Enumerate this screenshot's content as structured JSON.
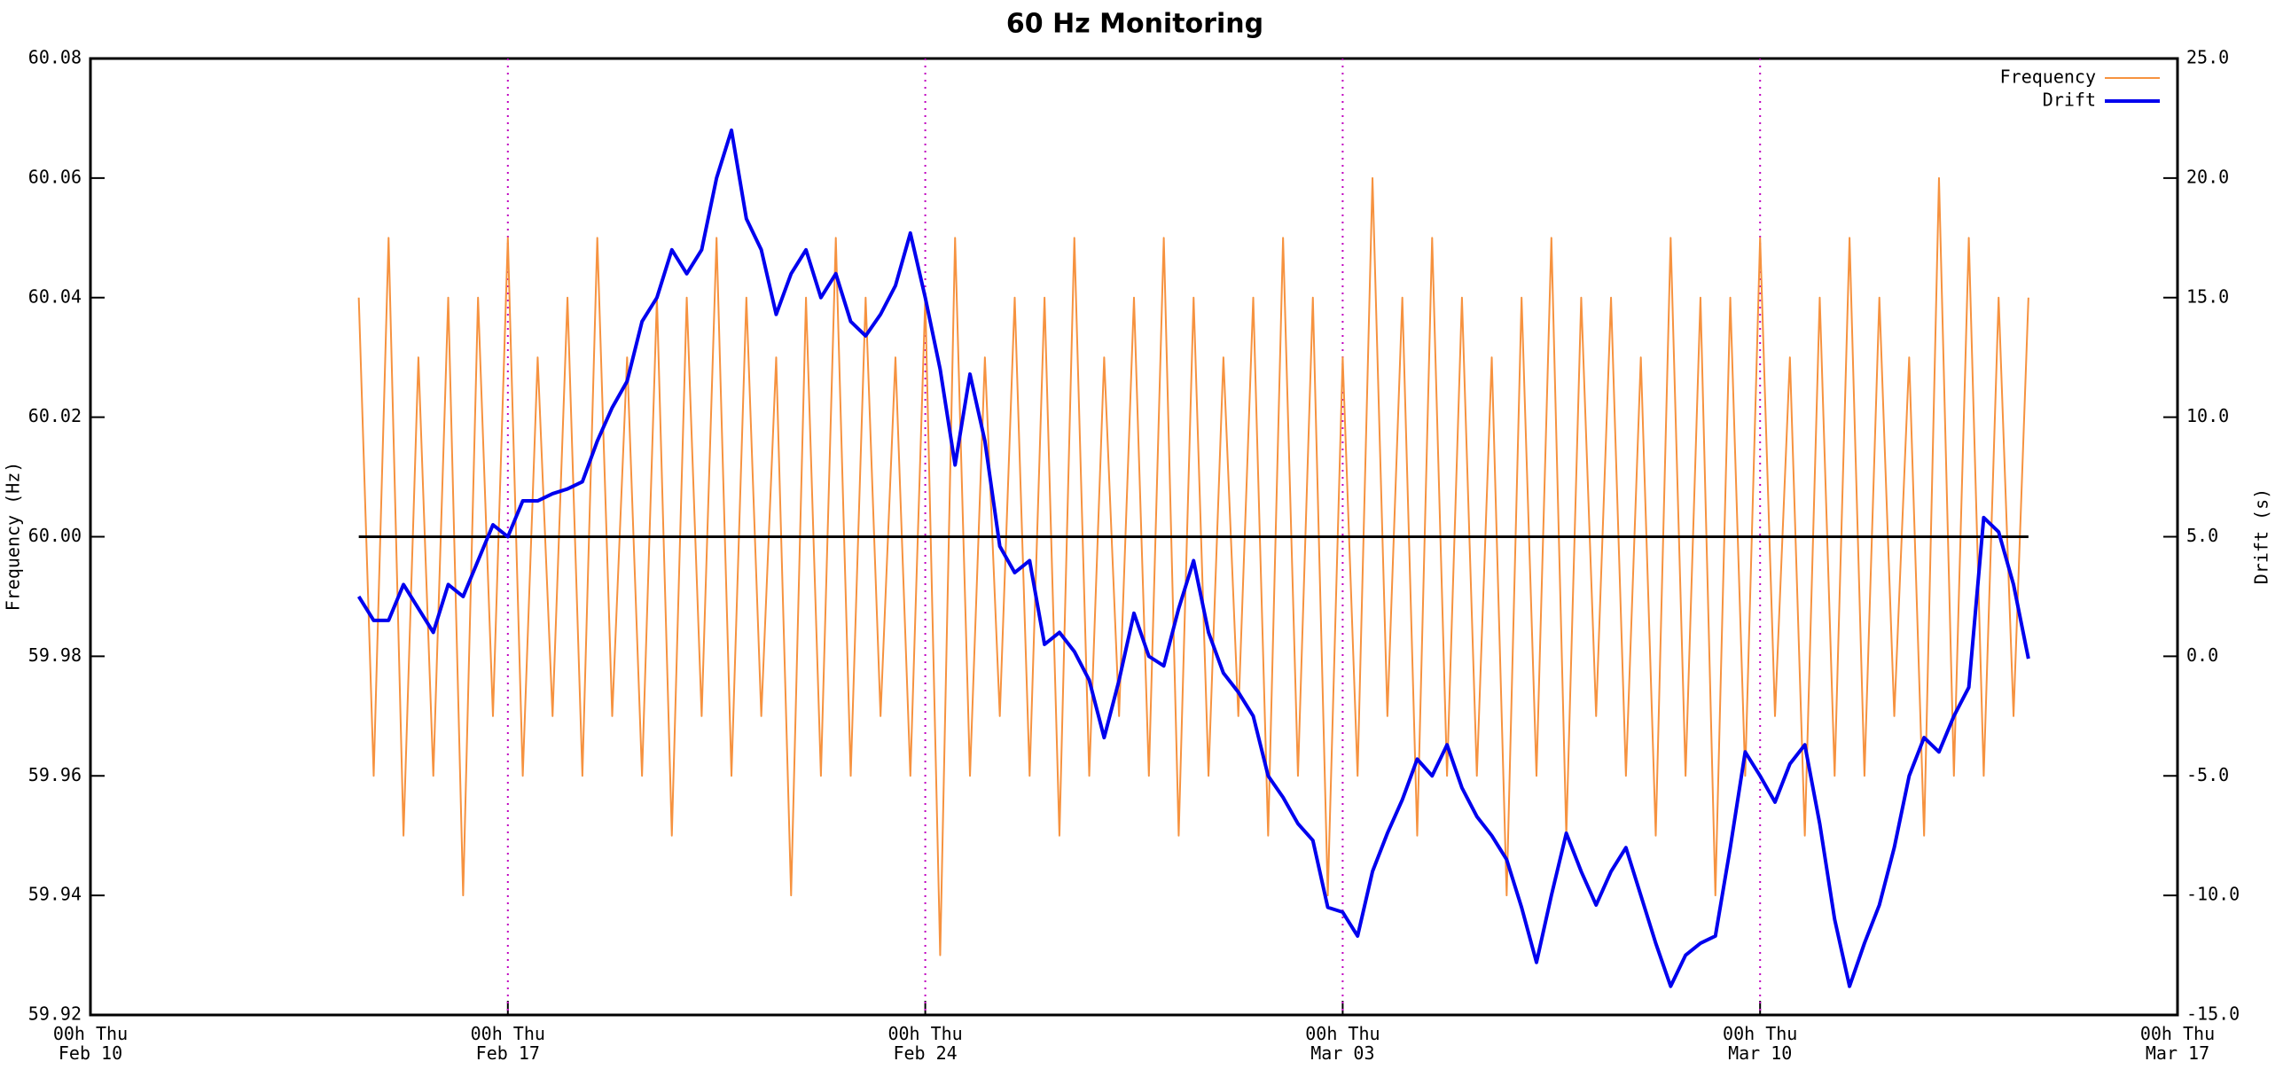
{
  "chart_data": {
    "type": "line",
    "title": "60 Hz Monitoring",
    "y_label": "Frequency (Hz)",
    "y2_label": "Drift (s)",
    "x": [
      4.5,
      4.75,
      5,
      5.25,
      5.5,
      5.75,
      6,
      6.25,
      6.5,
      6.75,
      7,
      7.25,
      7.5,
      7.75,
      8,
      8.25,
      8.5,
      8.75,
      9,
      9.25,
      9.5,
      9.75,
      10,
      10.25,
      10.5,
      10.75,
      11,
      11.25,
      11.5,
      11.75,
      12,
      12.25,
      12.5,
      12.75,
      13,
      13.25,
      13.5,
      13.75,
      14,
      14.25,
      14.5,
      14.75,
      15,
      15.25,
      15.5,
      15.75,
      16,
      16.25,
      16.5,
      16.75,
      17,
      17.25,
      17.5,
      17.75,
      18,
      18.25,
      18.5,
      18.75,
      19,
      19.25,
      19.5,
      19.75,
      20,
      20.25,
      20.5,
      20.75,
      21,
      21.25,
      21.5,
      21.75,
      22,
      22.25,
      22.5,
      22.75,
      23,
      23.25,
      23.5,
      23.75,
      24,
      24.25,
      24.5,
      24.75,
      25,
      25.25,
      25.5,
      25.75,
      26,
      26.25,
      26.5,
      26.75,
      27,
      27.25,
      27.5,
      27.75,
      28,
      28.25,
      28.5,
      28.75,
      29,
      29.25,
      29.5,
      29.75,
      30,
      30.25,
      30.5,
      30.75,
      31,
      31.25,
      31.5,
      31.75,
      32,
      32.25,
      32.5
    ],
    "series": [
      {
        "name": "Frequency",
        "color": "#f6923f",
        "axis": "y",
        "values": [
          60.04,
          59.96,
          60.05,
          59.95,
          60.03,
          59.96,
          60.04,
          59.94,
          60.04,
          59.97,
          60.05,
          59.96,
          60.03,
          59.97,
          60.04,
          59.96,
          60.05,
          59.97,
          60.03,
          59.96,
          60.04,
          59.95,
          60.04,
          59.97,
          60.05,
          59.96,
          60.04,
          59.97,
          60.03,
          59.94,
          60.04,
          59.96,
          60.05,
          59.96,
          60.04,
          59.97,
          60.03,
          59.96,
          60.04,
          59.93,
          60.05,
          59.96,
          60.03,
          59.97,
          60.04,
          59.96,
          60.04,
          59.95,
          60.05,
          59.96,
          60.03,
          59.97,
          60.04,
          59.96,
          60.05,
          59.95,
          60.04,
          59.96,
          60.03,
          59.97,
          60.04,
          59.95,
          60.05,
          59.96,
          60.04,
          59.94,
          60.03,
          59.96,
          60.06,
          59.97,
          60.04,
          59.95,
          60.05,
          59.96,
          60.04,
          59.96,
          60.03,
          59.94,
          60.04,
          59.96,
          60.05,
          59.95,
          60.04,
          59.97,
          60.04,
          59.96,
          60.03,
          59.95,
          60.05,
          59.96,
          60.04,
          59.94,
          60.04,
          59.96,
          60.05,
          59.97,
          60.03,
          59.95,
          60.04,
          59.96,
          60.05,
          59.96,
          60.04,
          59.97,
          60.03,
          59.95,
          60.06,
          59.96,
          60.05,
          59.96,
          60.04,
          59.97,
          60.04
        ]
      },
      {
        "name": "Drift",
        "color": "#0000ee",
        "axis": "y2",
        "values": [
          2.5,
          1.5,
          1.5,
          3,
          2,
          1,
          3,
          2.5,
          4,
          5.5,
          5,
          6.5,
          6.5,
          6.8,
          7,
          7.3,
          9,
          10.4,
          11.5,
          14,
          15,
          17,
          16,
          17,
          20,
          22,
          18.3,
          17,
          14.3,
          16,
          17,
          15,
          16,
          14,
          13.4,
          14.3,
          15.5,
          17.7,
          15,
          12,
          8,
          11.8,
          9,
          4.6,
          3.5,
          4,
          0.5,
          1,
          0.2,
          -1,
          -3.4,
          -1,
          1.8,
          0,
          -0.4,
          2,
          4,
          1,
          -0.7,
          -1.5,
          -2.5,
          -5,
          -5.9,
          -7,
          -7.7,
          -10.5,
          -10.7,
          -11.7,
          -9,
          -7.4,
          -6,
          -4.3,
          -5,
          -3.7,
          -5.5,
          -6.7,
          -7.5,
          -8.5,
          -10.5,
          -12.8,
          -10,
          -7.4,
          -9,
          -10.4,
          -9,
          -8,
          -10,
          -12,
          -13.8,
          -12.5,
          -12,
          -11.7,
          -8,
          -4,
          -5,
          -6.1,
          -4.5,
          -3.7,
          -7,
          -11,
          -13.8,
          -12,
          -10.4,
          -8,
          -5,
          -3.4,
          -4,
          -2.5,
          -1.3,
          5.8,
          5.2,
          3,
          -0.1
        ]
      }
    ],
    "xlim": [
      0,
      35
    ],
    "xticks": [
      {
        "value": 0,
        "label": "00h Thu Feb 10"
      },
      {
        "value": 7,
        "label": "00h Thu Feb 17"
      },
      {
        "value": 14,
        "label": "00h Thu Feb 24"
      },
      {
        "value": 21,
        "label": "00h Thu Mar 03"
      },
      {
        "value": 28,
        "label": "00h Thu Mar 10"
      },
      {
        "value": 35,
        "label": "00h Thu Mar 17"
      }
    ],
    "ylim": [
      59.92,
      60.08
    ],
    "yticks": [
      59.92,
      59.94,
      59.96,
      59.98,
      {
        "value": 60,
        "label": "60.00"
      },
      60.02,
      60.04,
      60.06,
      60.08
    ],
    "y2lim": [
      -15,
      25
    ],
    "y2ticks": [
      {
        "value": -15,
        "label": "-15.0"
      },
      {
        "value": -10,
        "label": "-10.0"
      },
      {
        "value": -5,
        "label": "-5.0"
      },
      {
        "value": 0,
        "label": "0.0"
      },
      {
        "value": 5,
        "label": "5.0"
      },
      {
        "value": 10,
        "label": "10.0"
      },
      {
        "value": 15,
        "label": "15.0"
      },
      {
        "value": 20,
        "label": "20.0"
      },
      {
        "value": 25,
        "label": "25.0"
      }
    ],
    "reference_line": 60,
    "grid": "x",
    "legend": "top-right"
  }
}
